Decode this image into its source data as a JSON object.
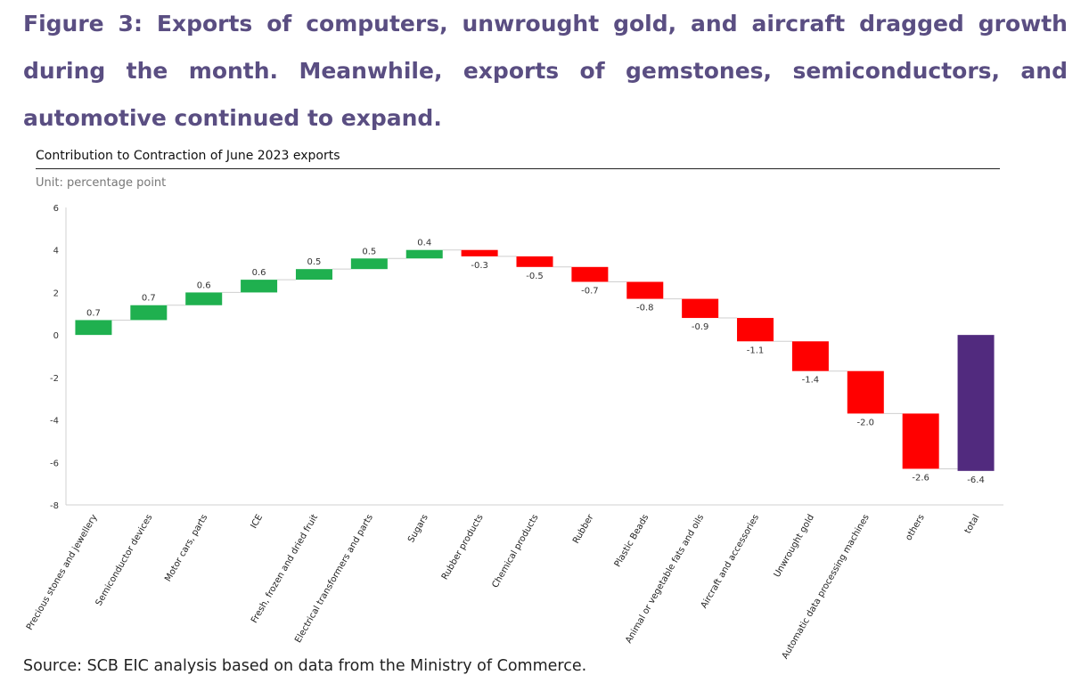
{
  "figure": {
    "title": "Figure 3: Exports of computers, unwrought gold, and aircraft dragged growth during the month. Meanwhile, exports of gemstones, semiconductors, and automotive continued to expand.",
    "source": "Source: SCB EIC analysis based on data from the Ministry of Commerce."
  },
  "colors": {
    "positive": "#1fb04f",
    "negative": "#ff0000",
    "total": "#512a7e",
    "title": "#5a4e82"
  },
  "chart_data": {
    "type": "bar",
    "subtype": "waterfall",
    "title": "Contribution to Contraction of June 2023 exports",
    "unit_label": "Unit: percentage point",
    "ylim": [
      -8,
      6
    ],
    "yticks": [
      "6",
      "4",
      "2",
      "0",
      "-2",
      "-4",
      "-6",
      "-8"
    ],
    "grid": false,
    "categories": [
      "Precious stones and jewellery",
      "Semiconductor devices",
      "Motor cars, parts",
      "ICE",
      "Fresh, frozen and dried fruit",
      "Electrical transformers and parts",
      "Sugars",
      "Rubber products",
      "Chemical products",
      "Rubber",
      "Plastic Beads",
      "Animal or vegetable fats and oils",
      "Aircraft and accessories",
      "Unwrought gold",
      "Automatic data processing machines",
      "others",
      "total"
    ],
    "values": [
      0.7,
      0.7,
      0.6,
      0.6,
      0.5,
      0.5,
      0.4,
      -0.3,
      -0.5,
      -0.7,
      -0.8,
      -0.9,
      -1.1,
      -1.4,
      -2.0,
      -2.6,
      -6.4
    ],
    "labels": [
      "0.7",
      "0.7",
      "0.6",
      "0.6",
      "0.5",
      "0.5",
      "0.4",
      "-0.3",
      "-0.5",
      "-0.7",
      "-0.8",
      "-0.9",
      "-1.1",
      "-1.4",
      "-2.0",
      "-2.6",
      "-6.4"
    ],
    "total_index": 16
  }
}
